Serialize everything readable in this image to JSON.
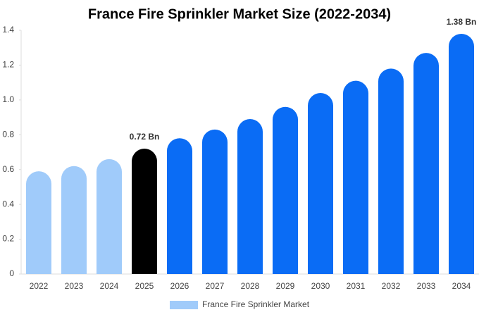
{
  "chart_data": {
    "type": "bar",
    "title": "France Fire Sprinkler Market Size (2022-2034)",
    "categories": [
      "2022",
      "2023",
      "2024",
      "2025",
      "2026",
      "2027",
      "2028",
      "2029",
      "2030",
      "2031",
      "2032",
      "2033",
      "2034"
    ],
    "series": [
      {
        "name": "France Fire Sprinkler Market",
        "color": "#a0cbfa",
        "values": [
          0.59,
          0.62,
          0.66,
          0.72,
          0.78,
          0.83,
          0.89,
          0.96,
          1.04,
          1.11,
          1.18,
          1.27,
          1.38
        ],
        "value_labels": [
          null,
          null,
          null,
          "0.72 Bn",
          null,
          null,
          null,
          null,
          null,
          null,
          null,
          null,
          "1.38 Bn"
        ],
        "colors": [
          "#a0cbfa",
          "#a0cbfa",
          "#a0cbfa",
          "#000000",
          "#0a6cf5",
          "#0a6cf5",
          "#0a6cf5",
          "#0a6cf5",
          "#0a6cf5",
          "#0a6cf5",
          "#0a6cf5",
          "#0a6cf5",
          "#0a6cf5"
        ]
      }
    ],
    "ylim": [
      0,
      1.4
    ],
    "yticks": [
      0,
      0.2,
      0.4,
      0.6,
      0.8,
      {
        "value": 1,
        "label": "1.0"
      },
      1.2,
      1.4
    ],
    "grid": false
  }
}
